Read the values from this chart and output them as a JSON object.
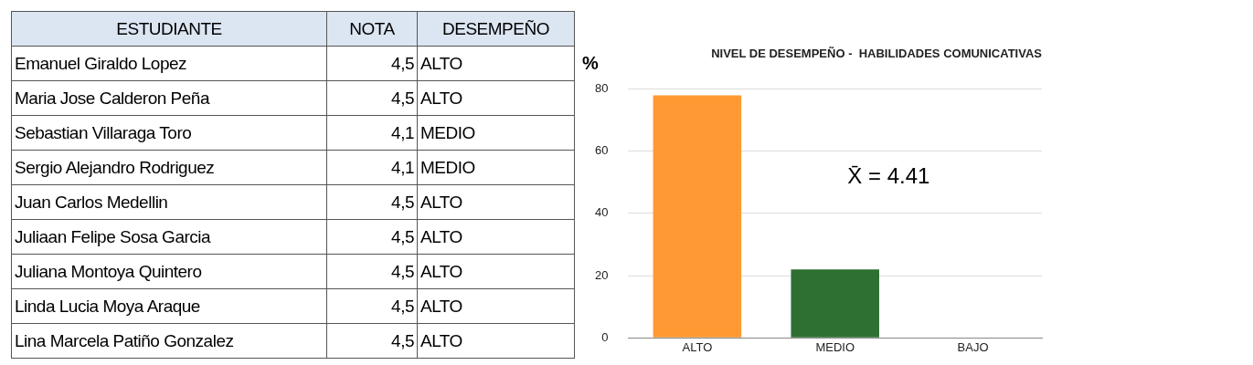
{
  "chart_data": [
    {
      "type": "other",
      "annotations": [
        "ESTUDIANTE",
        "NOTA",
        "DESEMPEÑO",
        "Emanuel Giraldo Lopez",
        "4,5",
        "ALTO",
        "Maria Jose Calderon Peña",
        "4,5",
        "ALTO",
        "Sebastian Villaraga Toro",
        "4,1",
        "MEDIO",
        "Sergio Alejandro Rodriguez",
        "4,1",
        "MEDIO",
        "Juan Carlos Medellin",
        "4,5",
        "ALTO",
        "Juliaan Felipe Sosa Garcia",
        "4,5",
        "ALTO",
        "Juliana Montoya Quintero",
        "4,5",
        "ALTO",
        "Linda Lucia Moya Araque",
        "4,5",
        "ALTO",
        "Lina Marcela Patiño Gonzalez",
        "4,5",
        "ALTO"
      ]
    },
    {
      "type": "bar",
      "title": "NIVEL DE DESEMPEÑO -  HABILIDADES COMUNICATIVAS",
      "ylabel": "%",
      "categories": [
        "ALTO",
        "MEDIO",
        "BAJO"
      ],
      "values": [
        78,
        22,
        0
      ],
      "colors": [
        "#ff9933",
        "#2e7032",
        "#999999"
      ],
      "ylim": [
        0,
        80
      ],
      "yticks": [
        0,
        20,
        40,
        60,
        80
      ],
      "grid": "y",
      "annotations": [
        "X̄ = 4.41"
      ]
    }
  ]
}
